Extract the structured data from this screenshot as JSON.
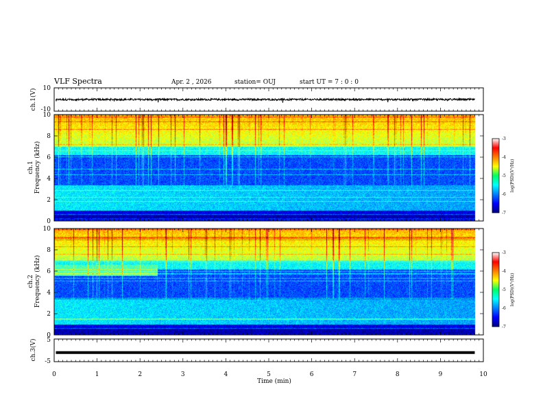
{
  "header": {
    "title": "VLF Spectra",
    "date": "Apr. 2 , 2026",
    "station": "station= OUJ",
    "start": "start UT =  7 : 0  : 0"
  },
  "chart_data": [
    {
      "type": "line",
      "ylabel": "ch.1(V)",
      "ylim": [
        -10,
        10
      ],
      "y_ticks": [
        "10",
        "-10"
      ],
      "xlim": [
        0,
        10
      ],
      "description_values": "waveform centered near 0 V, amplitude about ±1 V"
    },
    {
      "type": "heatmap",
      "ylabel_line1": "ch.1",
      "ylabel_line2": "Frequency (kHz)",
      "ylim": [
        0,
        10
      ],
      "y_ticks": [
        "0",
        "2",
        "4",
        "6",
        "8",
        "10"
      ],
      "xlim": [
        0,
        10
      ],
      "colorbar": {
        "label": "log(PSD)(V²/Hz)",
        "range": [
          -7,
          -3
        ],
        "ticks": [
          "-3",
          "-4",
          "-5",
          "-6",
          "-7"
        ]
      }
    },
    {
      "type": "heatmap",
      "ylabel_line1": "ch.2",
      "ylabel_line2": "Frequency (kHz)",
      "ylim": [
        0,
        10
      ],
      "y_ticks": [
        "0",
        "2",
        "4",
        "6",
        "8",
        "10"
      ],
      "xlim": [
        0,
        10
      ],
      "colorbar": {
        "label": "log(PSD)(V²/Hz)",
        "range": [
          -7,
          -3
        ],
        "ticks": [
          "-3",
          "-4",
          "-5",
          "-6",
          "-7"
        ]
      }
    },
    {
      "type": "line",
      "ylabel": "ch.3(V)",
      "ylim": [
        -5,
        5
      ],
      "y_ticks": [
        "5",
        "0",
        "-5"
      ],
      "xlim": [
        0,
        10
      ],
      "values_constant": -1
    }
  ],
  "x_axis": {
    "label": "Time (min)",
    "ticks": [
      "0",
      "1",
      "2",
      "3",
      "4",
      "5",
      "6",
      "7",
      "8",
      "9",
      "10"
    ]
  }
}
